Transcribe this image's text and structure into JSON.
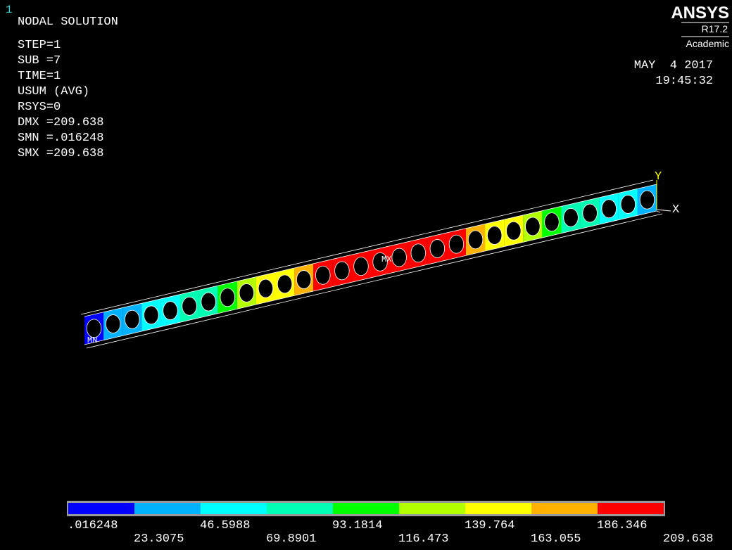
{
  "window_number": "1",
  "info": [
    "NODAL SOLUTION",
    "STEP=1",
    "SUB =7",
    "TIME=1",
    "USUM      (AVG)",
    "RSYS=0",
    "DMX =209.638",
    "SMN =.016248",
    "SMX =209.638"
  ],
  "logo": {
    "name": "ANSYS",
    "version": "R17.2",
    "edition": "Academic"
  },
  "date": "MAY  4 2017",
  "time": "19:45:32",
  "axes": {
    "y": "Y",
    "x": "X"
  },
  "markers": {
    "min": "MN",
    "max": "MX"
  },
  "legend": {
    "colors": [
      "#0000ff",
      "#00b2ff",
      "#00ffff",
      "#00ffb2",
      "#00ff00",
      "#b2ff00",
      "#ffff00",
      "#ffb200",
      "#ff0000"
    ],
    "labels": [
      ".016248",
      "23.3075",
      "46.5988",
      "69.8901",
      "93.1814",
      "116.473",
      "139.764",
      "163.055",
      "186.346",
      "209.638"
    ]
  }
}
